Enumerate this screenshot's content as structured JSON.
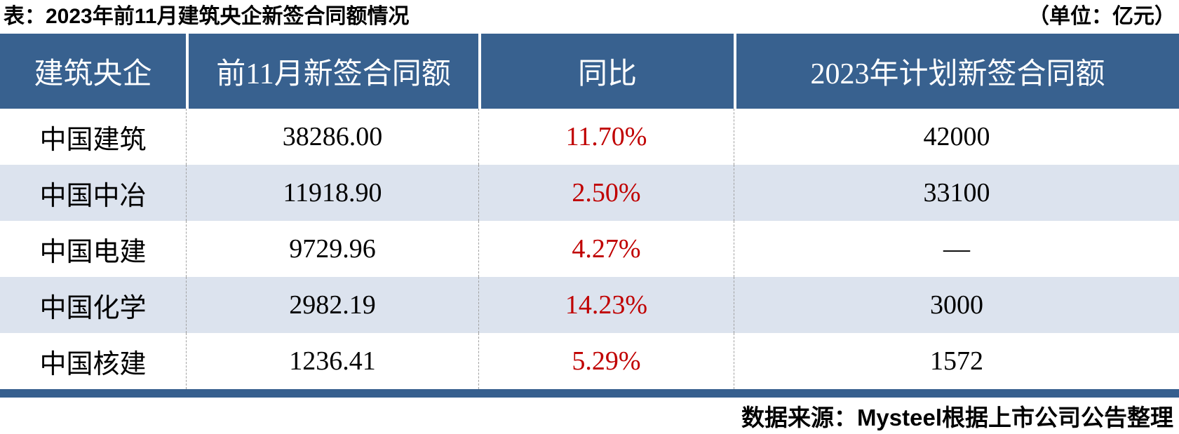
{
  "chart_data": {
    "type": "table",
    "title": "表：2023年前11月建筑央企新签合同额情况",
    "unit": "（单位：亿元）",
    "columns": [
      "建筑央企",
      "前11月新签合同额",
      "同比",
      "2023年计划新签合同额"
    ],
    "rows": [
      [
        "中国建筑",
        "38286.00",
        "11.70%",
        "42000"
      ],
      [
        "中国中冶",
        "11918.90",
        "2.50%",
        "33100"
      ],
      [
        "中国电建",
        "9729.96",
        "4.27%",
        "—"
      ],
      [
        "中国化学",
        "2982.19",
        "14.23%",
        "3000"
      ],
      [
        "中国核建",
        "1236.41",
        "5.29%",
        "1572"
      ]
    ],
    "yoy_values_numeric": [
      11.7,
      2.5,
      4.27,
      14.23,
      5.29
    ],
    "new_contract_values_numeric": [
      38286.0,
      11918.9,
      9729.96,
      2982.19,
      1236.41
    ],
    "plan_values_numeric": [
      42000,
      33100,
      null,
      3000,
      1572
    ],
    "source": "数据来源：Mysteel根据上市公司公告整理"
  },
  "colors": {
    "header_bg": "#38618F",
    "alt_row_bg": "#DCE3EE",
    "accent_red": "#C00000",
    "bottom_bar": "#365F8E"
  }
}
